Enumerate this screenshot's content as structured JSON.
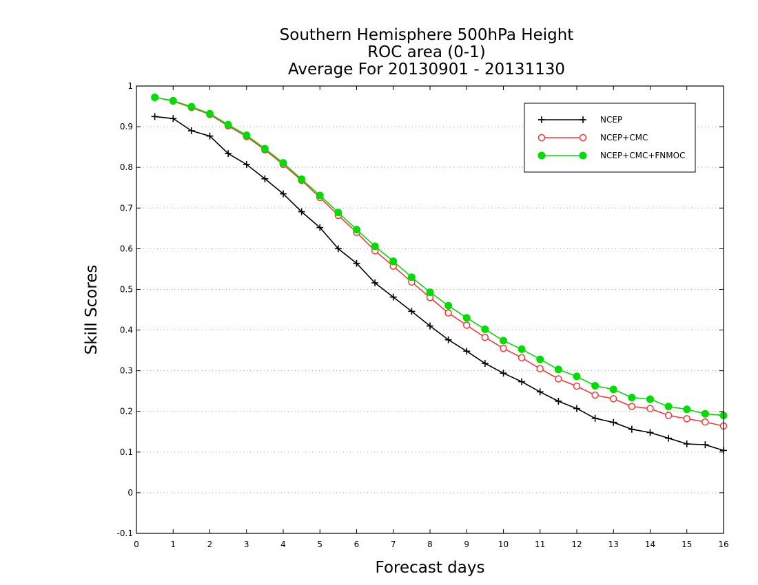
{
  "chart_data": {
    "type": "line",
    "title_lines": [
      "Southern Hemisphere 500hPa Height",
      "ROC area (0-1)",
      "Average For 20130901 - 20131130"
    ],
    "xlabel": "Forecast days",
    "ylabel": "Skill Scores",
    "xlim": [
      0,
      16
    ],
    "ylim": [
      -0.1,
      1
    ],
    "xticks": [
      0,
      1,
      2,
      3,
      4,
      5,
      6,
      7,
      8,
      9,
      10,
      11,
      12,
      13,
      14,
      15,
      16
    ],
    "xtick_labels": [
      "0",
      "1",
      "2",
      "3",
      "4",
      "5",
      "6",
      "7",
      "8",
      "9",
      "10",
      "11",
      "12",
      "13",
      "14",
      "15",
      "16"
    ],
    "yticks": [
      -0.1,
      0,
      0.1,
      0.2,
      0.3,
      0.4,
      0.5,
      0.6,
      0.7,
      0.8,
      0.9,
      1
    ],
    "ytick_labels": [
      "-0.1",
      "0",
      "0.1",
      "0.2",
      "0.3",
      "0.4",
      "0.5",
      "0.6",
      "0.7",
      "0.8",
      "0.9",
      "1"
    ],
    "grid": "horizontal-dotted",
    "legend_position": "top-right",
    "x": [
      0.5,
      1,
      1.5,
      2,
      2.5,
      3,
      3.5,
      4,
      4.5,
      5,
      5.5,
      6,
      6.5,
      7,
      7.5,
      8,
      8.5,
      9,
      9.5,
      10,
      10.5,
      11,
      11.5,
      12,
      12.5,
      13,
      13.5,
      14,
      14.5,
      15,
      15.5,
      16
    ],
    "series": [
      {
        "name": "NCEP",
        "color": "#000000",
        "marker": "plus",
        "values": [
          0.925,
          0.92,
          0.89,
          0.877,
          0.834,
          0.807,
          0.772,
          0.735,
          0.691,
          0.652,
          0.6,
          0.564,
          0.516,
          0.481,
          0.446,
          0.41,
          0.376,
          0.348,
          0.318,
          0.294,
          0.273,
          0.248,
          0.225,
          0.207,
          0.183,
          0.173,
          0.156,
          0.148,
          0.134,
          0.12,
          0.118,
          0.104
        ]
      },
      {
        "name": "NCEP+CMC",
        "color": "#ff3333",
        "marker": "open-circle",
        "values": [
          0.972,
          0.963,
          0.947,
          0.93,
          0.902,
          0.876,
          0.843,
          0.807,
          0.768,
          0.726,
          0.682,
          0.64,
          0.595,
          0.557,
          0.518,
          0.48,
          0.442,
          0.412,
          0.382,
          0.355,
          0.332,
          0.305,
          0.28,
          0.262,
          0.24,
          0.231,
          0.212,
          0.207,
          0.19,
          0.182,
          0.174,
          0.164
        ]
      },
      {
        "name": "NCEP+CMC+FNMOC",
        "color": "#00dd00",
        "marker": "filled-circle",
        "values": [
          0.972,
          0.964,
          0.949,
          0.932,
          0.905,
          0.879,
          0.846,
          0.811,
          0.771,
          0.731,
          0.689,
          0.647,
          0.606,
          0.569,
          0.53,
          0.493,
          0.46,
          0.43,
          0.402,
          0.374,
          0.353,
          0.328,
          0.303,
          0.286,
          0.263,
          0.254,
          0.234,
          0.23,
          0.212,
          0.205,
          0.194,
          0.19
        ]
      }
    ]
  }
}
